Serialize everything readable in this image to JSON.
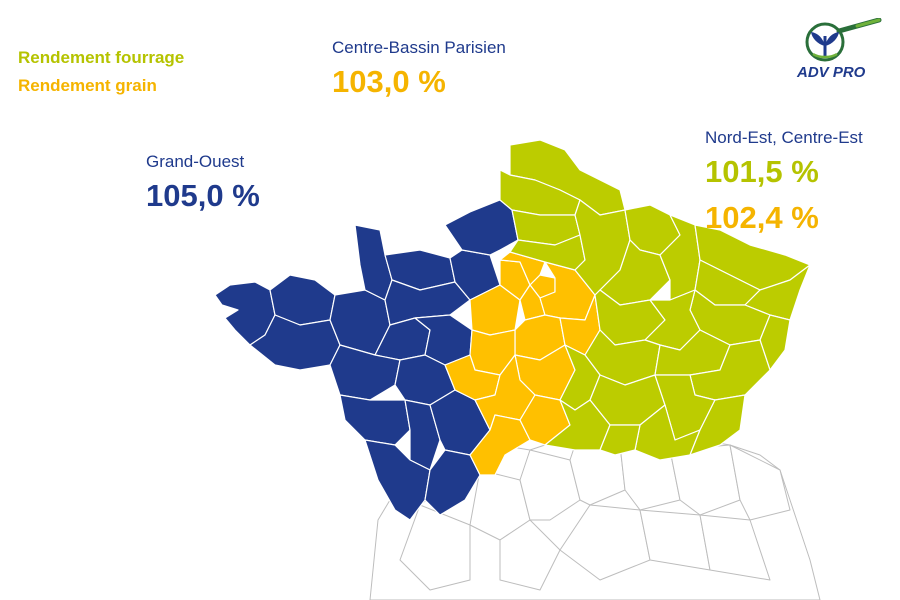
{
  "legend": {
    "items": [
      {
        "label": "Rendement fourrage",
        "color": "#b5c300"
      },
      {
        "label": "Rendement grain",
        "color": "#f5b400"
      }
    ]
  },
  "logo": {
    "text": "ADV PRO",
    "color": "#1f3a8c",
    "icon": "sprout-magnifier-icon"
  },
  "regions": {
    "grand_ouest": {
      "name": "Grand-Ouest",
      "value": "105,0 %",
      "color": "#1f3a8c"
    },
    "centre_bassin": {
      "name": "Centre-Bassin Parisien",
      "value": "103,0 %",
      "color": "#ffc000"
    },
    "nord_est": {
      "name": "Nord-Est, Centre-Est",
      "value_fourrage": "101,5 %",
      "value_grain": "102,4 %",
      "color": "#bccc00"
    }
  },
  "colors": {
    "grand_ouest_fill": "#1f3a8c",
    "centre_fill": "#ffc000",
    "nord_est_fill": "#bccc00",
    "other_fill": "#ffffff",
    "label_value_fourrage": "#b5c300",
    "label_value_grain": "#f5b400"
  }
}
